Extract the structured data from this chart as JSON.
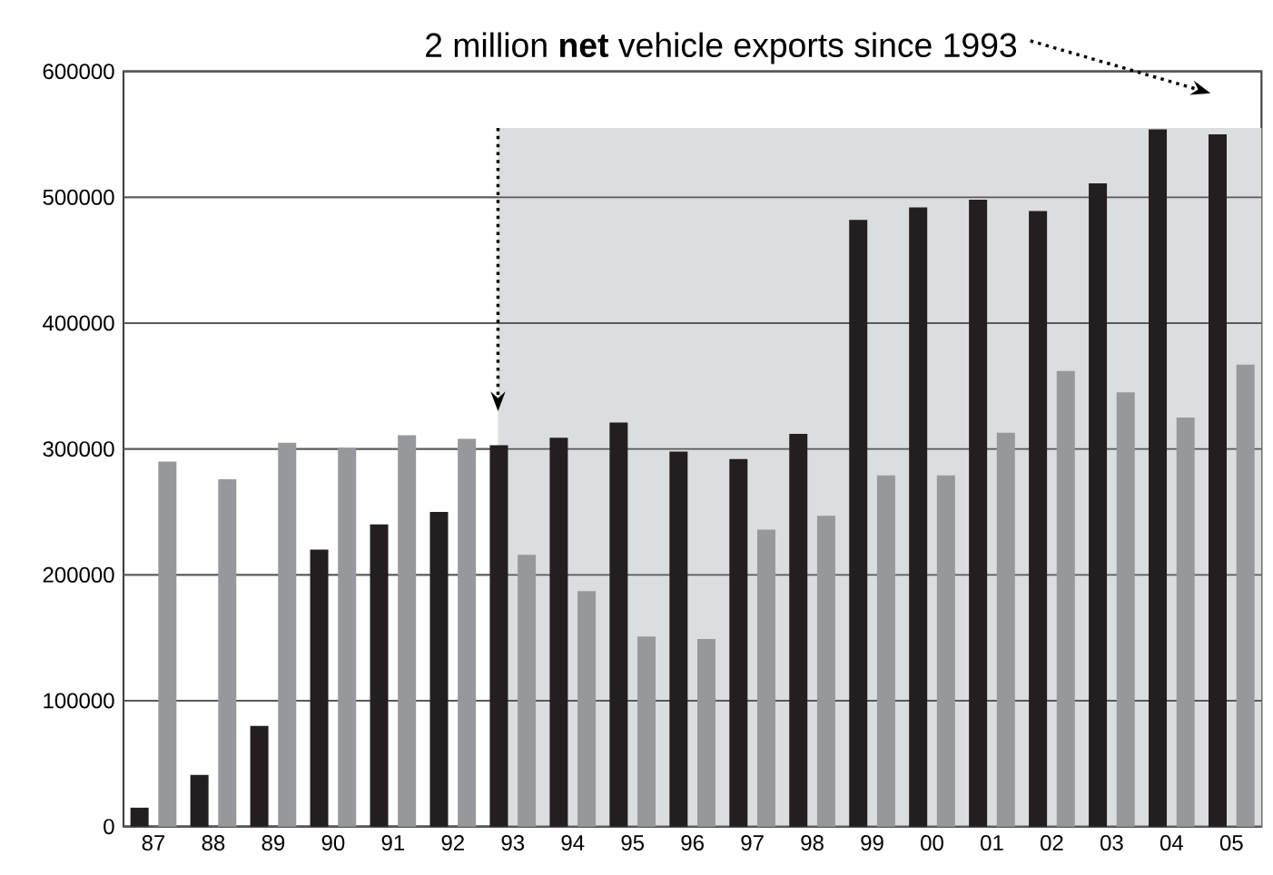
{
  "chart_data": {
    "type": "bar",
    "categories": [
      "87",
      "88",
      "89",
      "90",
      "91",
      "92",
      "93",
      "94",
      "95",
      "96",
      "97",
      "98",
      "99",
      "00",
      "01",
      "02",
      "03",
      "04",
      "05"
    ],
    "series": [
      {
        "color": "#231f20",
        "values": [
          15000,
          41000,
          80000,
          220000,
          240000,
          250000,
          303000,
          309000,
          321000,
          298000,
          292000,
          312000,
          482000,
          492000,
          498000,
          489000,
          511000,
          554000,
          550000
        ]
      },
      {
        "color": "#97989b",
        "values": [
          290000,
          276000,
          305000,
          301000,
          311000,
          308000,
          216000,
          187000,
          151000,
          149000,
          236000,
          247000,
          279000,
          279000,
          313000,
          362000,
          345000,
          325000,
          367000
        ]
      }
    ],
    "ylim": [
      0,
      600000
    ],
    "yticks": [
      0,
      100000,
      200000,
      300000,
      400000,
      500000,
      600000
    ],
    "grid": "y",
    "bands": [
      {
        "axis": "x",
        "from": "93",
        "to": "05",
        "color": "#dcdddf"
      }
    ],
    "annotations": [
      "2 million **net** vehicle exports since 1993"
    ]
  }
}
